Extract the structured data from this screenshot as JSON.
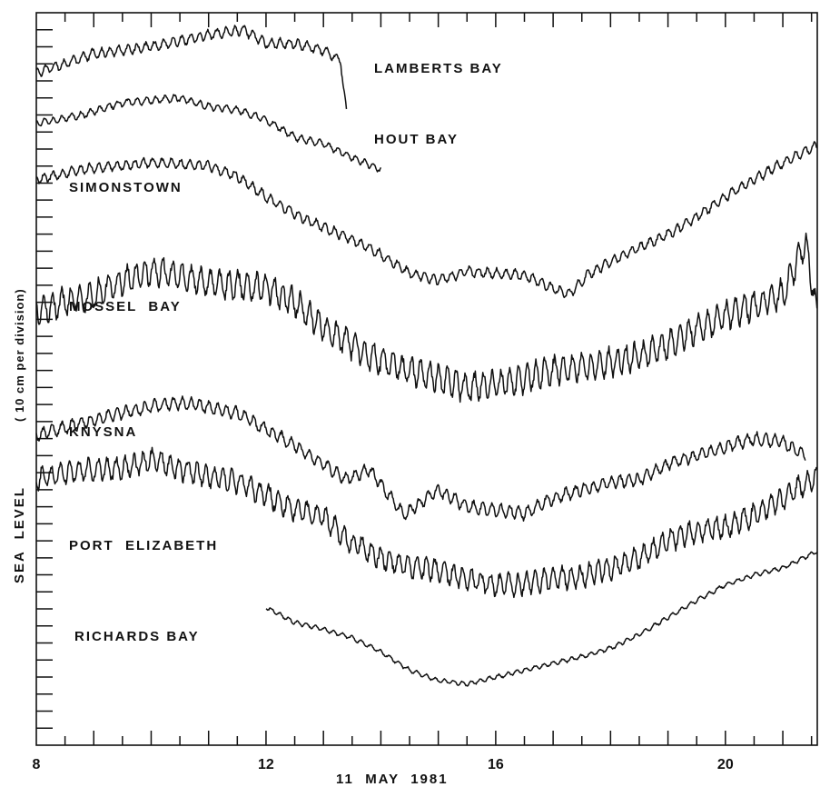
{
  "chart_data": {
    "type": "line",
    "title": "",
    "xlabel": "11  MAY  1981",
    "ylabel": "SEA  LEVEL",
    "ylabel_unit": "( 10 cm per division)",
    "x_ticks": [
      "8",
      "12",
      "16",
      "20"
    ],
    "x_tick_values": [
      8,
      12,
      16,
      20
    ],
    "xlim": [
      8,
      21.6
    ],
    "y_range_divisions": 43,
    "series": [
      {
        "name": "LAMBERTS BAY",
        "x_start": 8.0,
        "x_end": 13.4,
        "noise": 0.35,
        "points": [
          [
            8.0,
            3.5
          ],
          [
            8.5,
            3.0
          ],
          [
            9.0,
            2.4
          ],
          [
            10.0,
            2.0
          ],
          [
            11.0,
            1.3
          ],
          [
            11.6,
            1.0
          ],
          [
            12.0,
            1.8
          ],
          [
            12.5,
            1.8
          ],
          [
            13.0,
            2.2
          ],
          [
            13.3,
            2.8
          ],
          [
            13.4,
            5.9
          ]
        ]
      },
      {
        "name": "HOUT BAY",
        "x_start": 8.0,
        "x_end": 14.0,
        "noise": 0.25,
        "points": [
          [
            8.0,
            6.5
          ],
          [
            8.8,
            6.0
          ],
          [
            9.5,
            5.3
          ],
          [
            10.5,
            5.0
          ],
          [
            11.0,
            5.5
          ],
          [
            11.5,
            5.7
          ],
          [
            12.0,
            6.3
          ],
          [
            12.5,
            7.3
          ],
          [
            13.0,
            7.7
          ],
          [
            13.5,
            8.5
          ],
          [
            14.0,
            9.2
          ]
        ]
      },
      {
        "name": "SIMONSTOWN",
        "x_start": 8.0,
        "x_end": 21.6,
        "noise": 0.35,
        "points": [
          [
            8.0,
            9.8
          ],
          [
            8.8,
            9.2
          ],
          [
            10.0,
            8.8
          ],
          [
            11.0,
            9.0
          ],
          [
            11.5,
            9.6
          ],
          [
            12.0,
            10.8
          ],
          [
            12.5,
            11.8
          ],
          [
            13.0,
            12.6
          ],
          [
            13.5,
            13.3
          ],
          [
            14.0,
            14.2
          ],
          [
            14.5,
            15.3
          ],
          [
            15.0,
            15.7
          ],
          [
            15.5,
            15.2
          ],
          [
            16.0,
            15.3
          ],
          [
            16.5,
            15.4
          ],
          [
            17.0,
            16.2
          ],
          [
            17.3,
            16.5
          ],
          [
            17.6,
            15.4
          ],
          [
            18.0,
            14.6
          ],
          [
            18.5,
            13.8
          ],
          [
            19.0,
            13.0
          ],
          [
            19.5,
            12.0
          ],
          [
            20.0,
            10.8
          ],
          [
            20.5,
            9.8
          ],
          [
            21.0,
            8.8
          ],
          [
            21.6,
            7.8
          ]
        ]
      },
      {
        "name": "MOSSEL BAY",
        "x_start": 8.0,
        "x_end": 21.6,
        "noise": 1.0,
        "points": [
          [
            8.0,
            17.5
          ],
          [
            8.5,
            17.0
          ],
          [
            9.0,
            16.6
          ],
          [
            9.5,
            15.8
          ],
          [
            10.0,
            15.1
          ],
          [
            11.0,
            15.9
          ],
          [
            12.0,
            16.1
          ],
          [
            12.5,
            17.0
          ],
          [
            13.0,
            18.5
          ],
          [
            13.5,
            19.5
          ],
          [
            14.0,
            20.5
          ],
          [
            14.5,
            21.0
          ],
          [
            15.0,
            21.5
          ],
          [
            15.5,
            22.0
          ],
          [
            16.0,
            21.8
          ],
          [
            16.5,
            21.5
          ],
          [
            17.0,
            21.0
          ],
          [
            17.5,
            20.8
          ],
          [
            18.0,
            20.5
          ],
          [
            18.5,
            20.2
          ],
          [
            19.0,
            19.5
          ],
          [
            19.5,
            18.5
          ],
          [
            20.0,
            17.8
          ],
          [
            20.5,
            17.2
          ],
          [
            21.0,
            16.5
          ],
          [
            21.4,
            13.5
          ],
          [
            21.6,
            17.8
          ]
        ]
      },
      {
        "name": "KNYSNA",
        "x_start": 8.0,
        "x_end": 21.4,
        "noise": 0.45,
        "points": [
          [
            8.0,
            24.8
          ],
          [
            9.0,
            23.9
          ],
          [
            10.0,
            23.1
          ],
          [
            10.6,
            22.9
          ],
          [
            11.5,
            23.5
          ],
          [
            12.5,
            25.4
          ],
          [
            13.0,
            26.5
          ],
          [
            13.4,
            27.4
          ],
          [
            13.8,
            26.8
          ],
          [
            14.4,
            29.5
          ],
          [
            15.0,
            28.0
          ],
          [
            15.5,
            29.0
          ],
          [
            16.0,
            29.2
          ],
          [
            16.5,
            29.4
          ],
          [
            17.0,
            28.5
          ],
          [
            17.5,
            28.0
          ],
          [
            18.0,
            27.6
          ],
          [
            18.5,
            27.4
          ],
          [
            19.0,
            26.5
          ],
          [
            19.5,
            26.0
          ],
          [
            20.0,
            25.5
          ],
          [
            20.5,
            25.0
          ],
          [
            21.0,
            25.2
          ],
          [
            21.4,
            26.1
          ]
        ]
      },
      {
        "name": "PORT ELIZABETH",
        "x_start": 8.0,
        "x_end": 21.6,
        "noise": 0.8,
        "points": [
          [
            8.0,
            27.4
          ],
          [
            8.5,
            27.0
          ],
          [
            9.0,
            26.8
          ],
          [
            9.5,
            26.8
          ],
          [
            10.0,
            26.2
          ],
          [
            10.5,
            26.8
          ],
          [
            11.0,
            27.2
          ],
          [
            11.5,
            27.5
          ],
          [
            12.0,
            28.3
          ],
          [
            12.5,
            29.2
          ],
          [
            13.0,
            29.6
          ],
          [
            13.5,
            31.2
          ],
          [
            14.0,
            32.0
          ],
          [
            14.5,
            32.5
          ],
          [
            15.0,
            32.7
          ],
          [
            15.5,
            33.2
          ],
          [
            16.0,
            33.6
          ],
          [
            16.5,
            33.5
          ],
          [
            17.0,
            33.2
          ],
          [
            17.5,
            33.1
          ],
          [
            18.0,
            32.6
          ],
          [
            18.5,
            32.0
          ],
          [
            19.0,
            31.0
          ],
          [
            19.5,
            30.4
          ],
          [
            20.0,
            30.2
          ],
          [
            20.5,
            29.5
          ],
          [
            21.0,
            28.5
          ],
          [
            21.6,
            27.2
          ]
        ]
      },
      {
        "name": "RICHARDS BAY",
        "x_start": 12.0,
        "x_end": 21.6,
        "noise": 0.15,
        "points": [
          [
            12.0,
            34.9
          ],
          [
            12.5,
            35.8
          ],
          [
            13.0,
            36.2
          ],
          [
            13.5,
            36.7
          ],
          [
            14.0,
            37.5
          ],
          [
            14.5,
            38.6
          ],
          [
            15.0,
            39.2
          ],
          [
            15.5,
            39.4
          ],
          [
            16.0,
            39.0
          ],
          [
            16.5,
            38.6
          ],
          [
            17.0,
            38.2
          ],
          [
            17.5,
            37.8
          ],
          [
            18.0,
            37.3
          ],
          [
            18.5,
            36.5
          ],
          [
            19.0,
            35.5
          ],
          [
            19.5,
            34.5
          ],
          [
            20.0,
            33.6
          ],
          [
            20.5,
            33.0
          ],
          [
            21.0,
            32.6
          ],
          [
            21.6,
            31.6
          ]
        ]
      }
    ]
  },
  "labels": [
    {
      "text": "LAMBERTS BAY"
    },
    {
      "text": "HOUT BAY"
    },
    {
      "text": "SIMONSTOWN"
    },
    {
      "text": "MOSSEL  BAY"
    },
    {
      "text": "KNYSNA"
    },
    {
      "text": "PORT  ELIZABETH"
    },
    {
      "text": "RICHARDS BAY"
    }
  ]
}
